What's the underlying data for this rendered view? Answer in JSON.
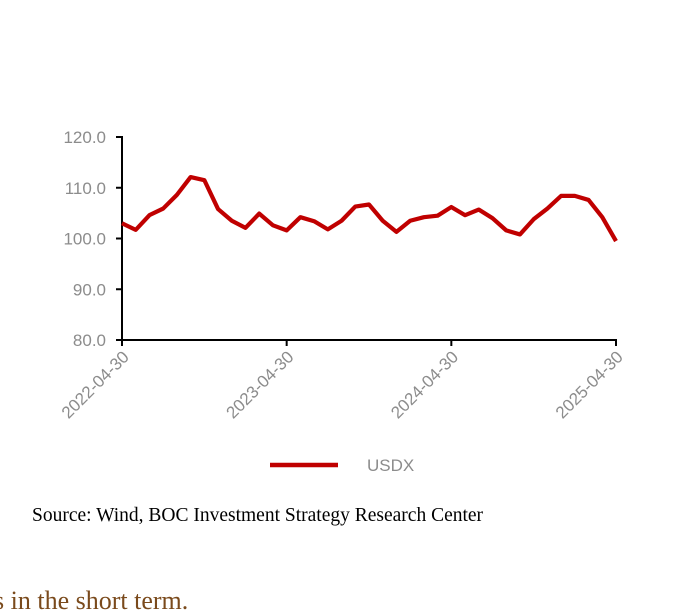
{
  "chart_data": {
    "type": "line",
    "title": "",
    "xlabel": "",
    "ylabel": "",
    "ylim": [
      80,
      120
    ],
    "yticks": [
      "80.0",
      "90.0",
      "100.0",
      "110.0",
      "120.0"
    ],
    "xticks": [
      "2022-04-30",
      "2023-04-30",
      "2024-04-30",
      "2025-04-30"
    ],
    "grid": false,
    "legend_position": "bottom",
    "series": [
      {
        "name": "USDX",
        "color": "#c00000",
        "values": [
          103.0,
          101.7,
          104.6,
          105.9,
          108.6,
          112.1,
          111.5,
          105.8,
          103.5,
          102.1,
          104.9,
          102.6,
          101.6,
          104.2,
          103.4,
          101.8,
          103.5,
          106.3,
          106.7,
          103.5,
          101.3,
          103.5,
          104.2,
          104.5,
          106.2,
          104.6,
          105.7,
          104.0,
          101.6,
          100.8,
          103.8,
          105.9,
          108.4,
          108.4,
          107.6,
          104.2,
          99.5
        ]
      }
    ]
  },
  "source_text": "Source: Wind, BOC Investment Strategy Research Center",
  "trailing_text": "s in the short term."
}
